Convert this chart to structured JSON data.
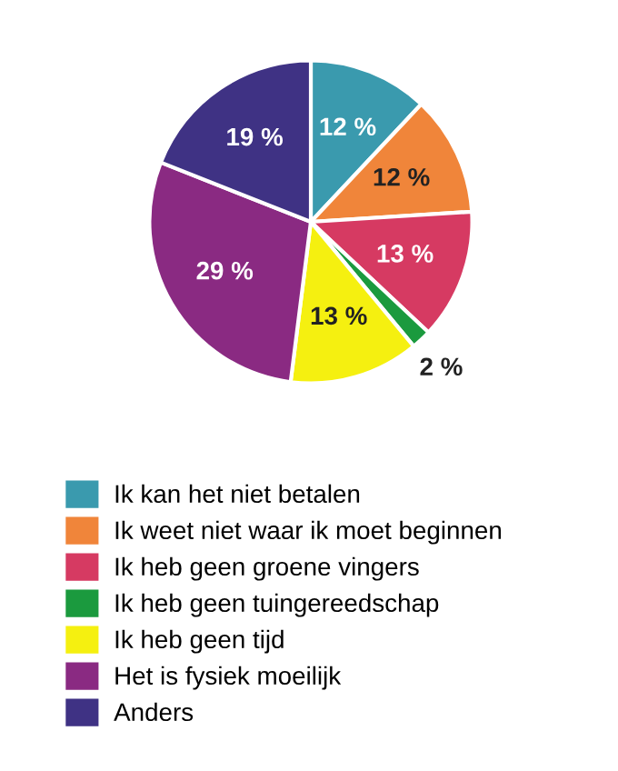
{
  "chart_data": {
    "type": "pie",
    "categories": [
      "Ik kan het niet betalen",
      "Ik weet niet waar ik moet beginnen",
      "Ik heb geen groene vingers",
      "Ik heb geen tuingereedschap",
      "Ik heb geen tijd",
      "Het is fysiek moeilijk",
      "Anders"
    ],
    "values": [
      12,
      12,
      13,
      2,
      13,
      29,
      19
    ],
    "value_labels": [
      "12 %",
      "12 %",
      "13 %",
      "2 %",
      "13 %",
      "29 %",
      "19 %"
    ],
    "colors": [
      "#3a9aae",
      "#f0853a",
      "#d63a62",
      "#1b9a3e",
      "#f5f010",
      "#8a2a82",
      "#3f3284"
    ],
    "legend": "bottom"
  }
}
